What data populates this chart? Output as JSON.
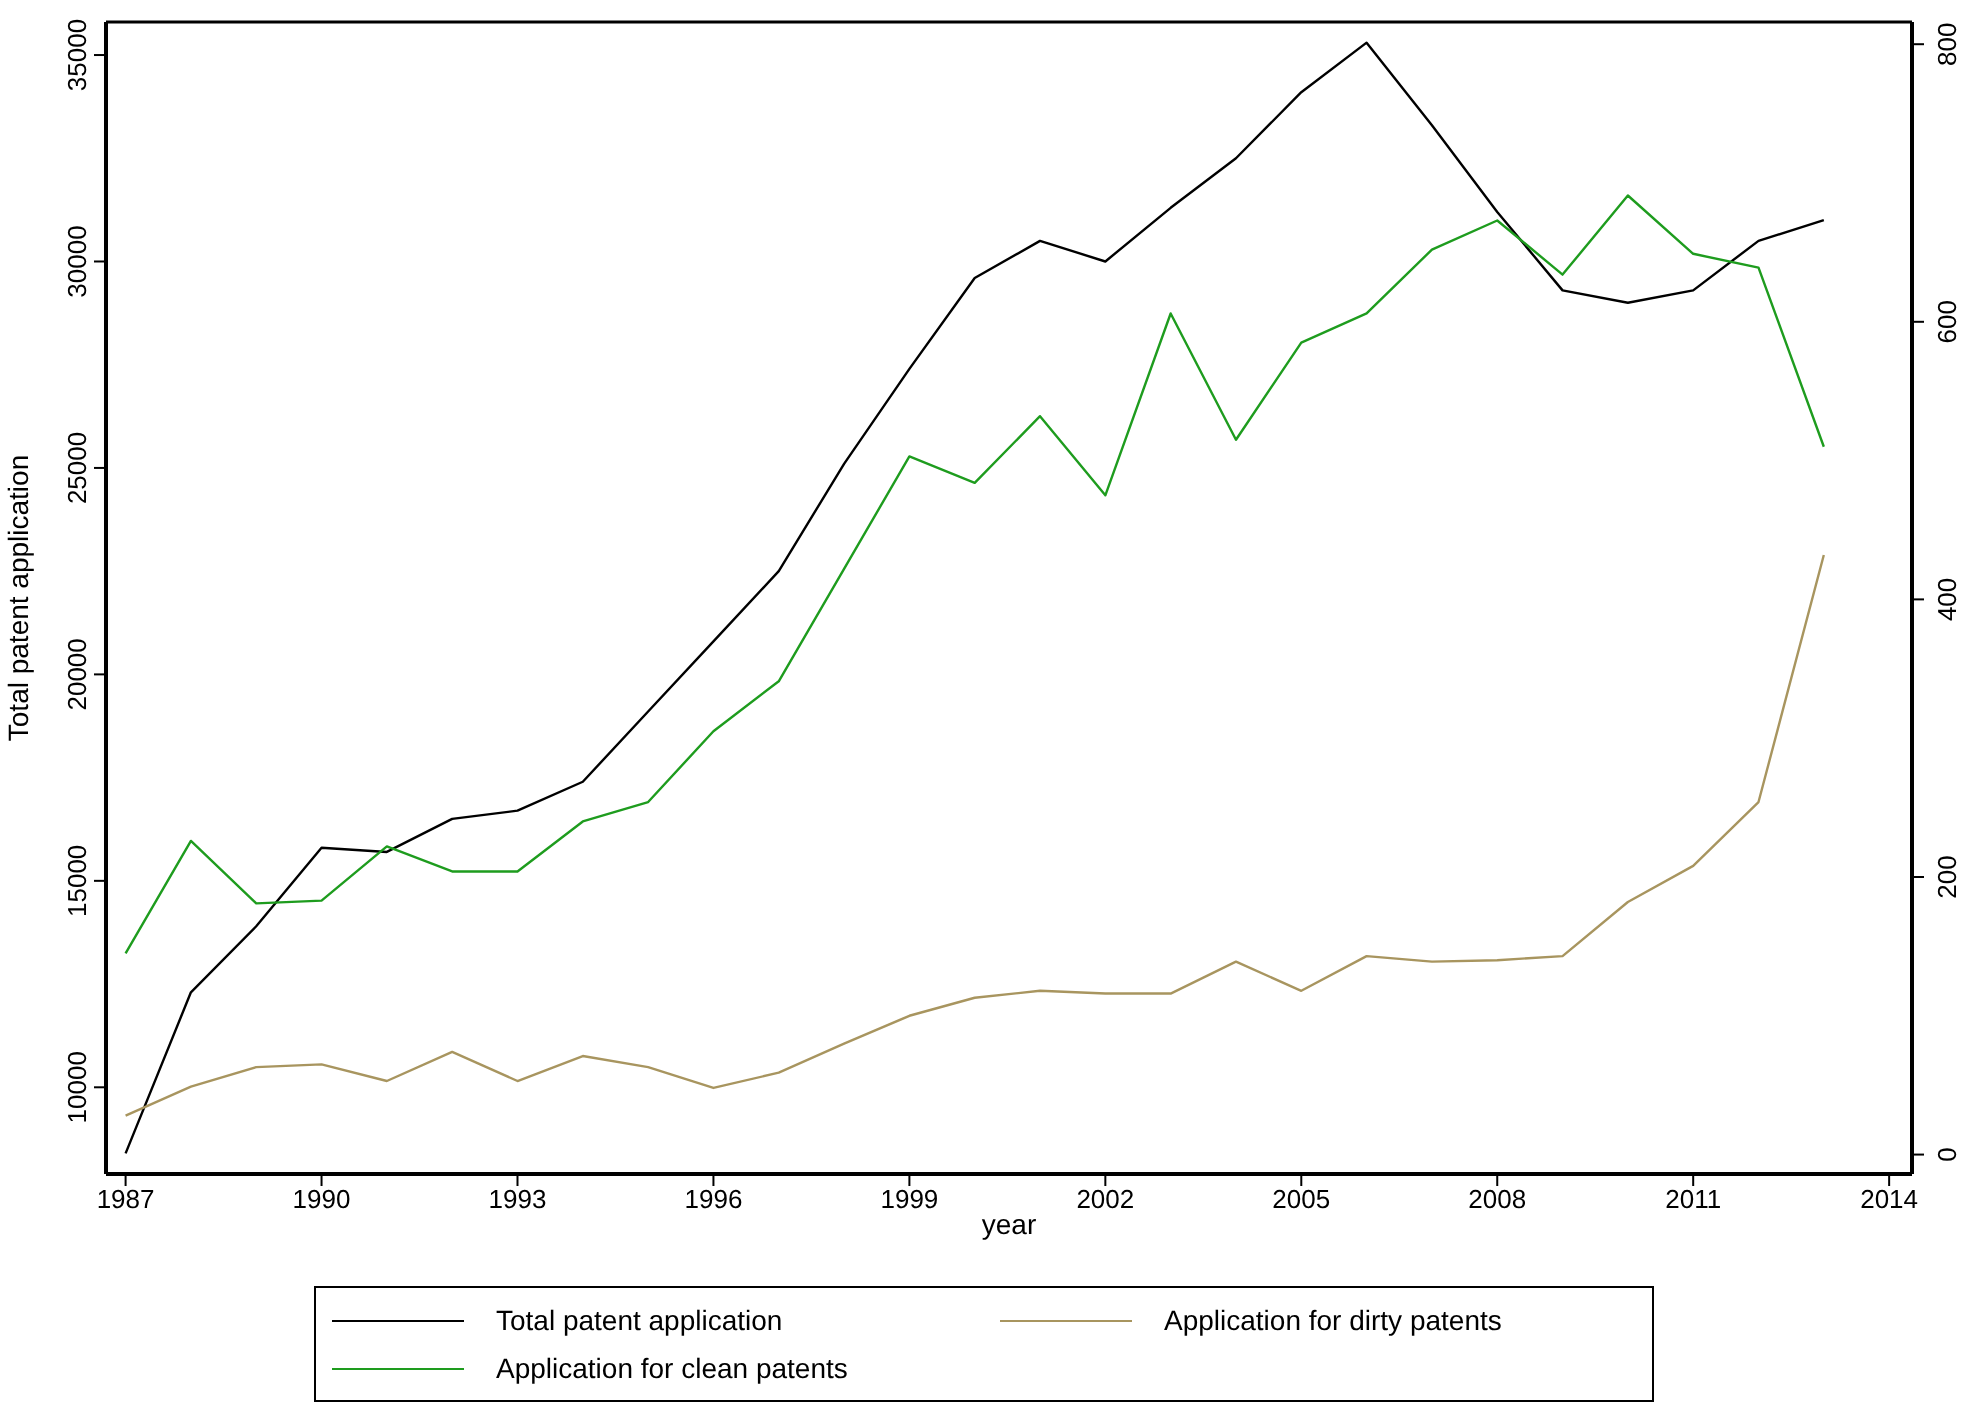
{
  "chart_data": {
    "type": "line",
    "xlabel": "year",
    "ylabel": "Total patent application",
    "x": [
      1987,
      1988,
      1989,
      1990,
      1991,
      1992,
      1993,
      1994,
      1995,
      1996,
      1997,
      1998,
      1999,
      2000,
      2001,
      2002,
      2003,
      2004,
      2005,
      2006,
      2007,
      2008,
      2009,
      2010,
      2011,
      2012,
      2013
    ],
    "series": [
      {
        "name": "Total patent application",
        "color": "#000000",
        "values": [
          8400,
          12300,
          13900,
          15800,
          15700,
          16500,
          16700,
          17400,
          19100,
          20800,
          22500,
          25100,
          27400,
          29600,
          30500,
          30000,
          31300,
          32500,
          34100,
          35300,
          33300,
          31200,
          29300,
          29000,
          29300,
          30500,
          31000
        ]
      },
      {
        "name": "Application for clean patents",
        "color": "#1e9c1e",
        "axis": "y2",
        "values": [
          145,
          226,
          181,
          183,
          222,
          204,
          204,
          240,
          254,
          305,
          341,
          422,
          503,
          484,
          532,
          475,
          606,
          515,
          585,
          606,
          652,
          673,
          634,
          691,
          649,
          639,
          510
        ]
      },
      {
        "name": "Application for dirty patents",
        "color": "#a8955f",
        "axis": "y2",
        "values": [
          28,
          49,
          63,
          65,
          53,
          74,
          53,
          71,
          63,
          48,
          59,
          80,
          100,
          113,
          118,
          116,
          116,
          139,
          118,
          143,
          139,
          140,
          143,
          182,
          208,
          254,
          432
        ]
      }
    ],
    "xlim": [
      1986.7,
      2014.35
    ],
    "xticks": [
      1987,
      1990,
      1993,
      1996,
      1999,
      2002,
      2005,
      2008,
      2011,
      2014
    ],
    "ylim": [
      7900,
      35800
    ],
    "yticks": [
      10000,
      15000,
      20000,
      25000,
      30000,
      35000
    ],
    "y2lim": [
      -14,
      816
    ],
    "y2ticks": [
      0,
      200,
      400,
      600,
      800
    ],
    "grid": false,
    "legend": "bottom",
    "marker": "none",
    "line_style": "solid"
  }
}
